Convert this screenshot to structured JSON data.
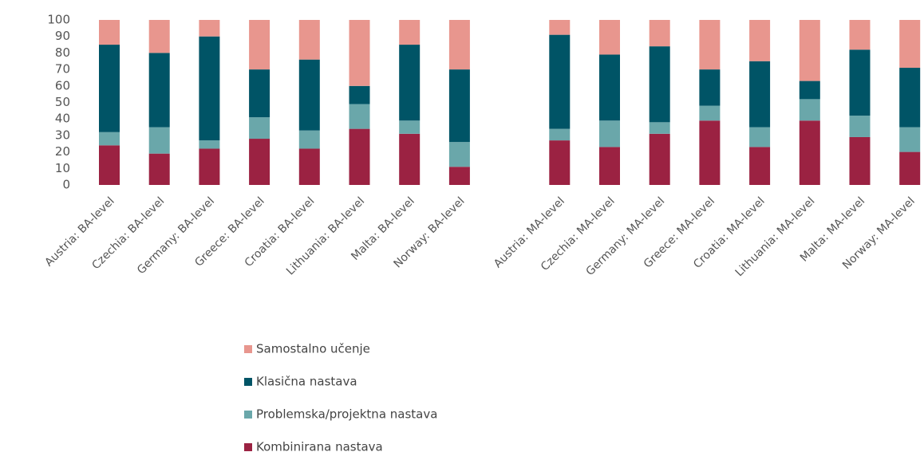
{
  "chart_data": {
    "type": "stacked_bar",
    "categories": [
      "Austria: BA-level",
      "Czechia: BA-level",
      "Germany: BA-level",
      "Greece: BA-level",
      "Croatia: BA-level",
      "Lithuania: BA-level",
      "Malta: BA-level",
      "Norway: BA-level",
      null,
      "Austria: MA-level",
      "Czechia: MA-level",
      "Germany: MA-level",
      "Greece: MA-level",
      "Croatia: MA-level",
      "Lithuania: MA-level",
      "Malta: MA-level",
      "Norway: MA-level"
    ],
    "series": [
      {
        "name": "Kombinirana nastava",
        "color": "#9b2242",
        "values": [
          24,
          19,
          22,
          28,
          22,
          34,
          31,
          11,
          null,
          27,
          23,
          31,
          39,
          23,
          39,
          29,
          20
        ]
      },
      {
        "name": "Problemska/projektna nastava",
        "color": "#6aa7aa",
        "values": [
          8,
          16,
          5,
          13,
          11,
          15,
          8,
          15,
          null,
          7,
          16,
          7,
          9,
          12,
          13,
          13,
          15
        ]
      },
      {
        "name": "Klasična nastava",
        "color": "#005466",
        "values": [
          53,
          45,
          63,
          29,
          43,
          11,
          46,
          44,
          null,
          57,
          40,
          46,
          22,
          40,
          11,
          40,
          36
        ]
      },
      {
        "name": "Samostalno učenje",
        "color": "#e8968e",
        "values": [
          15,
          20,
          10,
          30,
          24,
          40,
          15,
          30,
          null,
          9,
          21,
          16,
          30,
          25,
          37,
          18,
          29
        ]
      }
    ],
    "ylim": [
      0,
      100
    ],
    "yticks": [
      0,
      10,
      20,
      30,
      40,
      50,
      60,
      70,
      80,
      90,
      100
    ],
    "grid": false
  }
}
